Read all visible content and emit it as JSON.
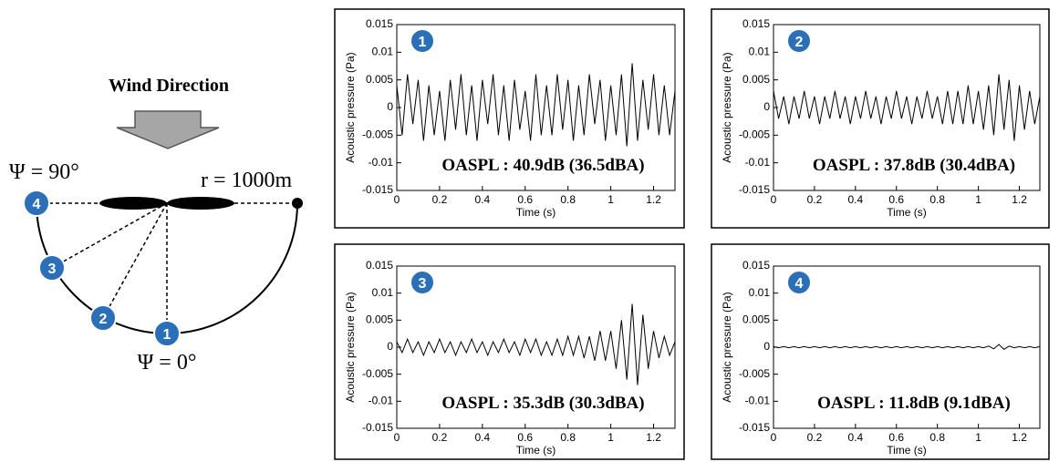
{
  "diagram": {
    "title": "Wind Direction",
    "psi_top": "Ψ = 90°",
    "radius": "r = 1000m",
    "psi_bottom": "Ψ = 0°",
    "markers": [
      "1",
      "2",
      "3",
      "4"
    ]
  },
  "chart_data": [
    {
      "type": "line",
      "badge": "1",
      "annotation": "OASPL : 40.9dB (36.5dBA)",
      "xlabel": "Time (s)",
      "ylabel": "Acoustic pressure (Pa)",
      "color": "#000000",
      "xlim": [
        0,
        1.3
      ],
      "ylim": [
        -0.015,
        0.015
      ],
      "xticks": [
        0,
        0.2,
        0.4,
        0.6,
        0.8,
        1,
        1.2
      ],
      "yticks": [
        -0.015,
        -0.01,
        -0.005,
        0,
        0.005,
        0.01,
        0.015
      ],
      "x": [
        0,
        0.025,
        0.05,
        0.075,
        0.1,
        0.125,
        0.15,
        0.175,
        0.2,
        0.225,
        0.25,
        0.275,
        0.3,
        0.325,
        0.35,
        0.375,
        0.4,
        0.425,
        0.45,
        0.475,
        0.5,
        0.525,
        0.55,
        0.575,
        0.6,
        0.625,
        0.65,
        0.675,
        0.7,
        0.725,
        0.75,
        0.775,
        0.8,
        0.825,
        0.85,
        0.875,
        0.9,
        0.925,
        0.95,
        0.975,
        1,
        1.025,
        1.05,
        1.075,
        1.1,
        1.125,
        1.15,
        1.175,
        1.2,
        1.225,
        1.25,
        1.275,
        1.3
      ],
      "values": [
        0.004,
        -0.005,
        0.006,
        -0.003,
        0.005,
        -0.006,
        0.004,
        -0.005,
        0.003,
        -0.006,
        0.005,
        -0.004,
        0.006,
        -0.005,
        0.004,
        -0.006,
        0.005,
        -0.003,
        0.006,
        -0.005,
        0.004,
        -0.006,
        0.005,
        -0.004,
        0.003,
        -0.006,
        0.006,
        -0.005,
        0.004,
        -0.005,
        0.006,
        -0.004,
        0.005,
        -0.006,
        0.004,
        -0.005,
        0.006,
        -0.003,
        0.005,
        -0.006,
        0.004,
        -0.005,
        0.006,
        -0.007,
        0.008,
        -0.006,
        0.005,
        -0.004,
        0.006,
        -0.005,
        0.004,
        -0.005,
        0.003
      ]
    },
    {
      "type": "line",
      "badge": "2",
      "annotation": "OASPL : 37.8dB (30.4dBA)",
      "xlabel": "Time (s)",
      "ylabel": "Acoustic pressure (Pa)",
      "color": "#000000",
      "xlim": [
        0,
        1.3
      ],
      "ylim": [
        -0.015,
        0.015
      ],
      "xticks": [
        0,
        0.2,
        0.4,
        0.6,
        0.8,
        1,
        1.2
      ],
      "yticks": [
        -0.015,
        -0.01,
        -0.005,
        0,
        0.005,
        0.01,
        0.015
      ],
      "x": [
        0,
        0.025,
        0.05,
        0.075,
        0.1,
        0.125,
        0.15,
        0.175,
        0.2,
        0.225,
        0.25,
        0.275,
        0.3,
        0.325,
        0.35,
        0.375,
        0.4,
        0.425,
        0.45,
        0.475,
        0.5,
        0.525,
        0.55,
        0.575,
        0.6,
        0.625,
        0.65,
        0.675,
        0.7,
        0.725,
        0.75,
        0.775,
        0.8,
        0.825,
        0.85,
        0.875,
        0.9,
        0.925,
        0.95,
        0.975,
        1,
        1.025,
        1.05,
        1.075,
        1.1,
        1.125,
        1.15,
        1.175,
        1.2,
        1.225,
        1.25,
        1.275,
        1.3
      ],
      "values": [
        0.003,
        -0.002,
        0.002,
        -0.003,
        0.002,
        -0.002,
        0.003,
        -0.002,
        0.002,
        -0.003,
        0.002,
        -0.002,
        0.003,
        -0.002,
        0.002,
        -0.003,
        0.002,
        -0.002,
        0.003,
        -0.002,
        0.002,
        -0.003,
        0.002,
        -0.002,
        0.003,
        -0.002,
        0.002,
        -0.003,
        0.002,
        -0.002,
        0.003,
        -0.002,
        0.002,
        -0.003,
        0.003,
        -0.003,
        0.003,
        -0.003,
        0.004,
        -0.003,
        0.003,
        -0.004,
        0.004,
        -0.005,
        0.006,
        -0.004,
        0.005,
        -0.006,
        0.004,
        -0.004,
        0.003,
        -0.003,
        0.002
      ]
    },
    {
      "type": "line",
      "badge": "3",
      "annotation": "OASPL : 35.3dB (30.3dBA)",
      "xlabel": "Time (s)",
      "ylabel": "Acoustic pressure (Pa)",
      "color": "#000000",
      "xlim": [
        0,
        1.3
      ],
      "ylim": [
        -0.015,
        0.015
      ],
      "xticks": [
        0,
        0.2,
        0.4,
        0.6,
        0.8,
        1,
        1.2
      ],
      "yticks": [
        -0.015,
        -0.01,
        -0.005,
        0,
        0.005,
        0.01,
        0.015
      ],
      "x": [
        0,
        0.025,
        0.05,
        0.075,
        0.1,
        0.125,
        0.15,
        0.175,
        0.2,
        0.225,
        0.25,
        0.275,
        0.3,
        0.325,
        0.35,
        0.375,
        0.4,
        0.425,
        0.45,
        0.475,
        0.5,
        0.525,
        0.55,
        0.575,
        0.6,
        0.625,
        0.65,
        0.675,
        0.7,
        0.725,
        0.75,
        0.775,
        0.8,
        0.825,
        0.85,
        0.875,
        0.9,
        0.925,
        0.95,
        0.975,
        1,
        1.025,
        1.05,
        1.075,
        1.1,
        1.125,
        1.15,
        1.175,
        1.2,
        1.225,
        1.25,
        1.275,
        1.3
      ],
      "values": [
        0.001,
        -0.001,
        0.0015,
        -0.001,
        0.001,
        -0.0015,
        0.001,
        -0.001,
        0.0015,
        -0.001,
        0.001,
        -0.0015,
        0.001,
        -0.001,
        0.0015,
        -0.001,
        0.001,
        -0.0015,
        0.001,
        -0.001,
        0.0015,
        -0.001,
        0.001,
        -0.0015,
        0.0015,
        -0.001,
        0.0015,
        -0.0015,
        0.001,
        -0.0015,
        0.0015,
        -0.0015,
        0.002,
        -0.0015,
        0.002,
        -0.002,
        0.002,
        -0.0025,
        0.003,
        -0.0025,
        0.003,
        -0.004,
        0.005,
        -0.006,
        0.008,
        -0.007,
        0.006,
        -0.004,
        0.003,
        -0.002,
        0.002,
        -0.0015,
        0.001
      ]
    },
    {
      "type": "line",
      "badge": "4",
      "annotation": "OASPL : 11.8dB (9.1dBA)",
      "xlabel": "Time (s)",
      "ylabel": "Acoustic pressure (Pa)",
      "color": "#000000",
      "xlim": [
        0,
        1.3
      ],
      "ylim": [
        -0.015,
        0.015
      ],
      "xticks": [
        0,
        0.2,
        0.4,
        0.6,
        0.8,
        1,
        1.2
      ],
      "yticks": [
        -0.015,
        -0.01,
        -0.005,
        0,
        0.005,
        0.01,
        0.015
      ],
      "x": [
        0,
        0.025,
        0.05,
        0.075,
        0.1,
        0.125,
        0.15,
        0.175,
        0.2,
        0.225,
        0.25,
        0.275,
        0.3,
        0.325,
        0.35,
        0.375,
        0.4,
        0.425,
        0.45,
        0.475,
        0.5,
        0.525,
        0.55,
        0.575,
        0.6,
        0.625,
        0.65,
        0.675,
        0.7,
        0.725,
        0.75,
        0.775,
        0.8,
        0.825,
        0.85,
        0.875,
        0.9,
        0.925,
        0.95,
        0.975,
        1,
        1.025,
        1.05,
        1.075,
        1.1,
        1.125,
        1.15,
        1.175,
        1.2,
        1.225,
        1.25,
        1.275,
        1.3
      ],
      "values": [
        0.0001,
        -0.0001,
        0.0001,
        -0.0001,
        0.0001,
        -0.0001,
        0.0001,
        -0.0001,
        0.0001,
        -0.0001,
        0.0001,
        -0.0001,
        0.0001,
        -0.0001,
        0.0001,
        -0.0001,
        0.0001,
        -0.0001,
        0.0001,
        -0.0001,
        0.0001,
        -0.0001,
        0.0001,
        -0.0001,
        0.0001,
        -0.0001,
        0.0001,
        -0.0001,
        0.0001,
        -0.0001,
        0.0001,
        -0.0001,
        0.0001,
        -0.0001,
        0.0001,
        -0.0001,
        0.0001,
        -0.0001,
        0.0001,
        -0.0001,
        0.0001,
        -0.0001,
        0.0002,
        -0.0003,
        0.0005,
        -0.0004,
        0.0002,
        -0.0001,
        0.0001,
        -0.0001,
        0.0001,
        -0.0001,
        0.0001
      ]
    }
  ]
}
